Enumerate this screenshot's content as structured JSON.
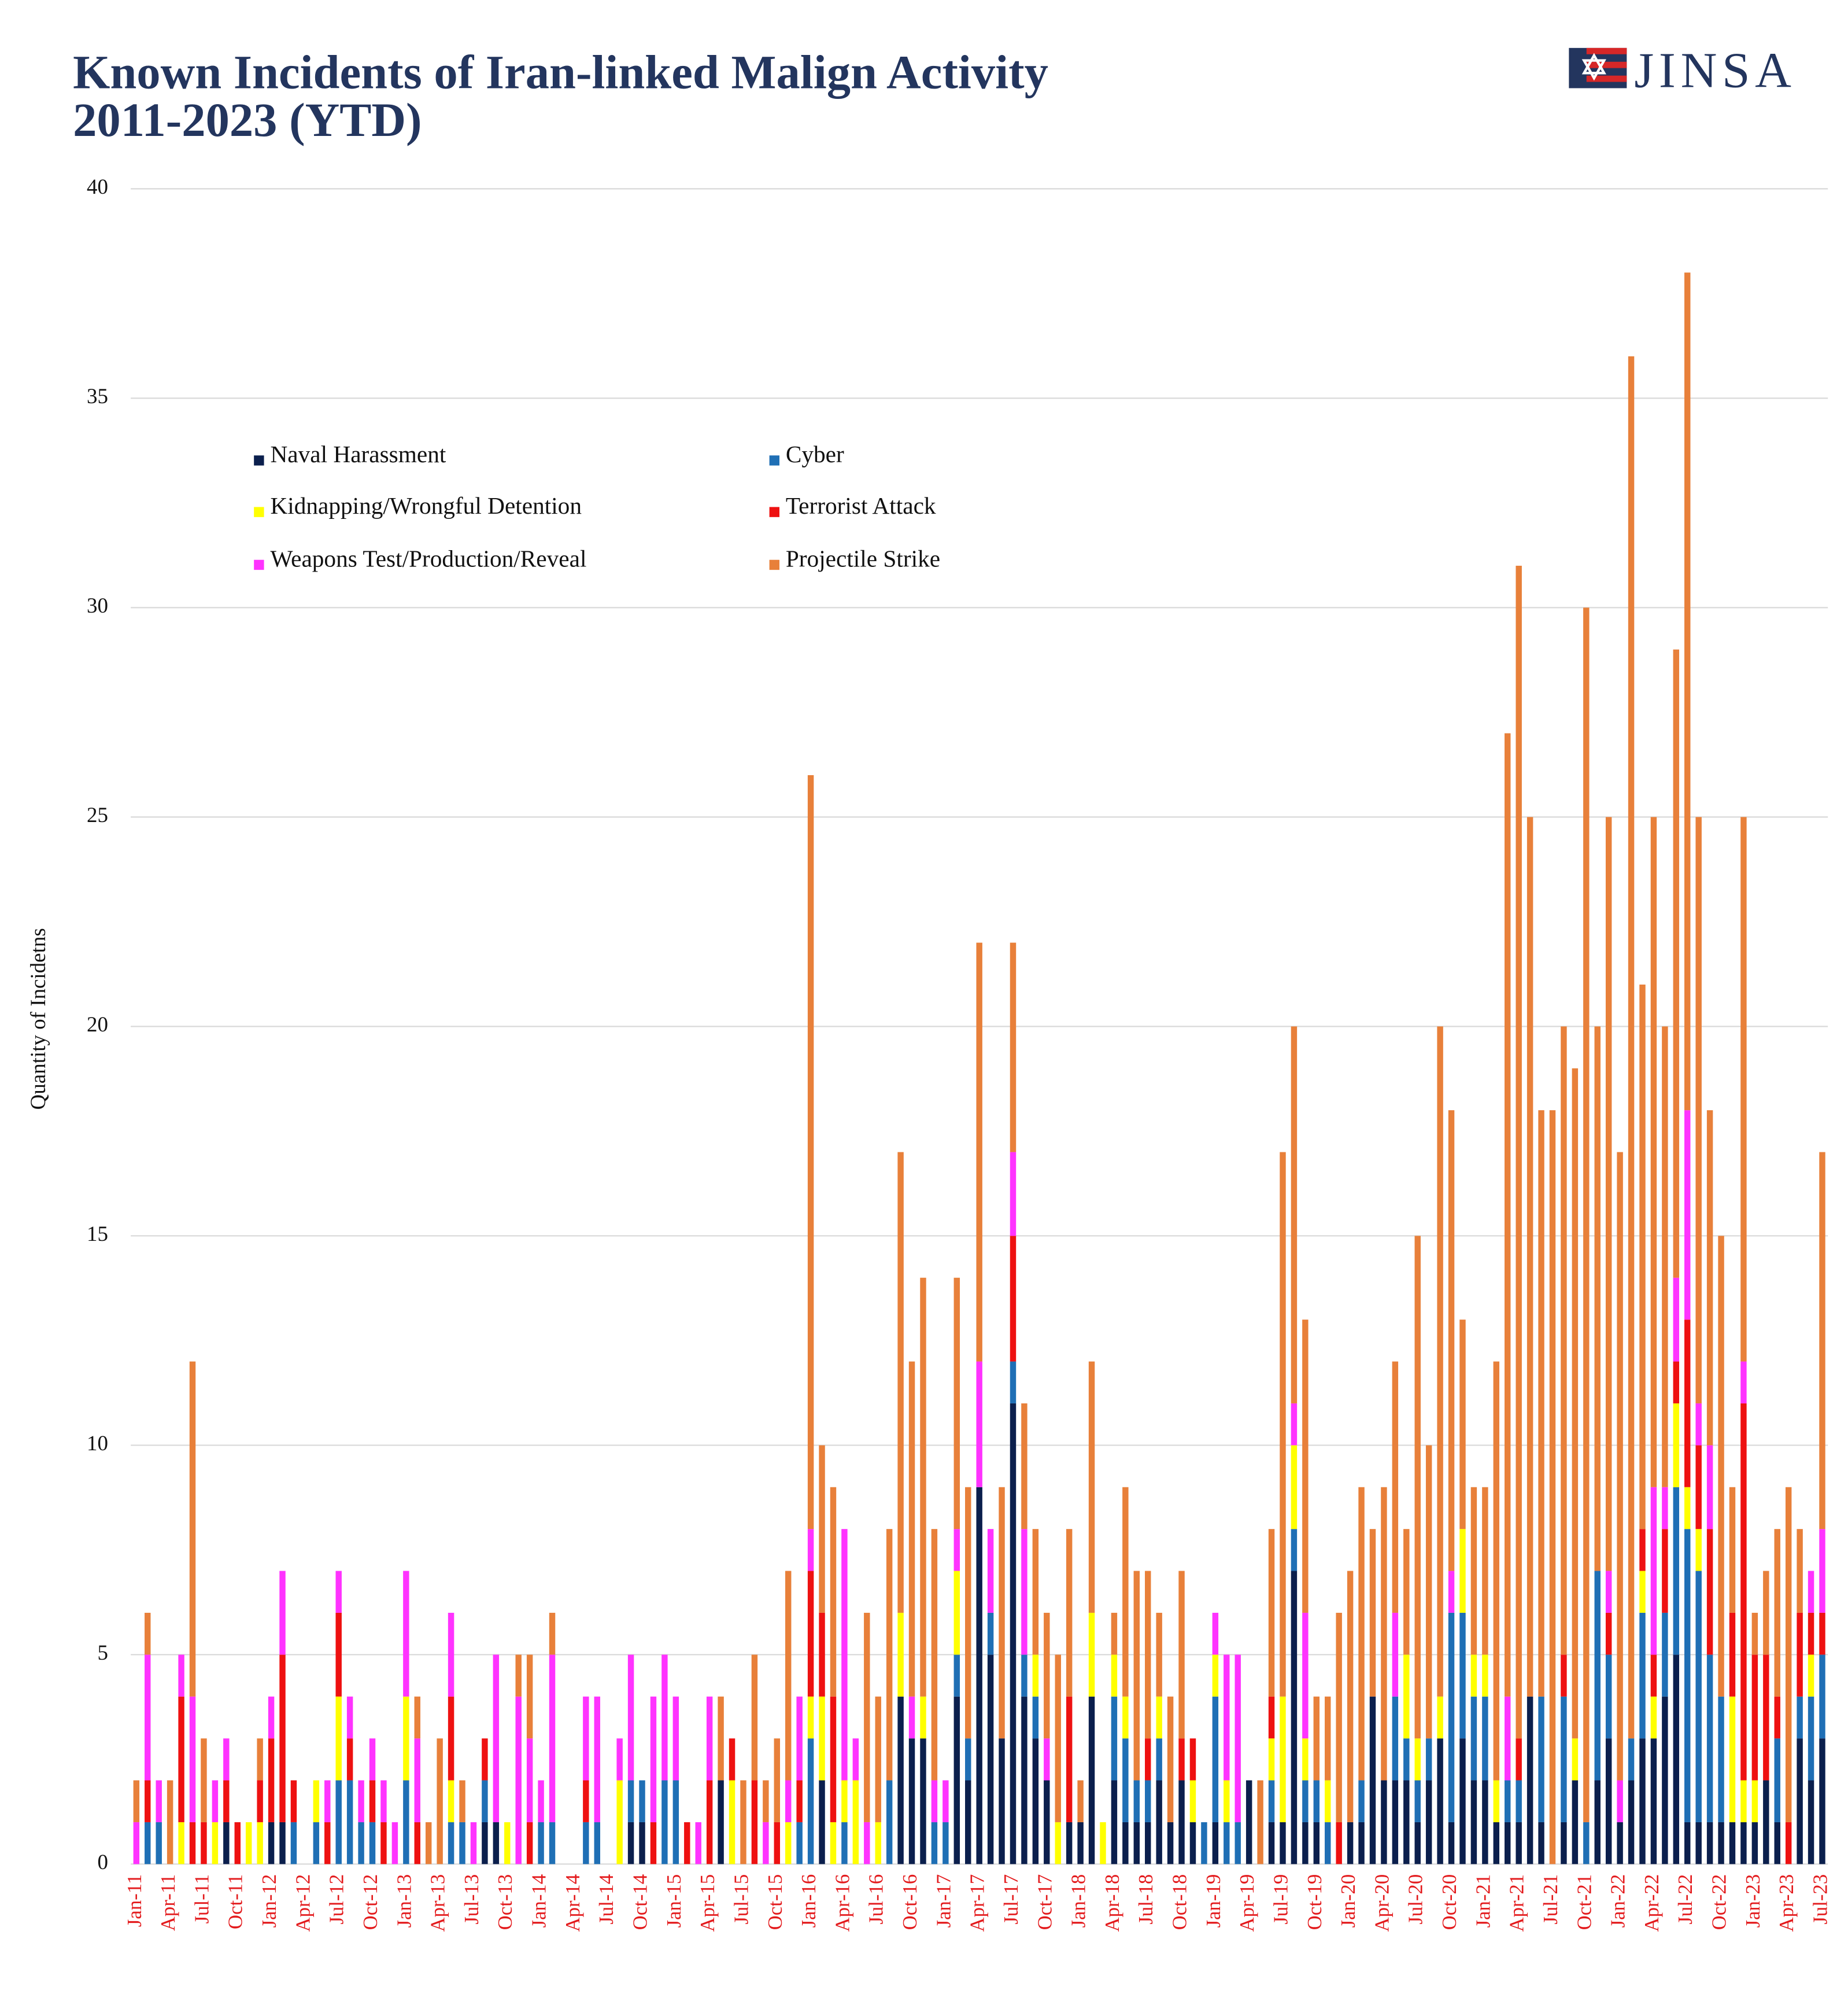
{
  "chart_data": {
    "type": "stacked_bar",
    "title": [
      "Known Incidents of Iran-linked Malign Activity",
      "2011-2023 (YTD)"
    ],
    "logo": "JINSA",
    "ylabel": "Quantity of Incidetns",
    "ylim": [
      0,
      40
    ],
    "yticks": [
      0,
      5,
      10,
      15,
      20,
      25,
      30,
      35,
      40
    ],
    "grid": true,
    "legend": "top-left",
    "categories": [
      "Jan-11",
      null,
      null,
      "Apr-11",
      null,
      null,
      "Jul-11",
      null,
      null,
      "Oct-11",
      null,
      null,
      "Jan-12",
      null,
      null,
      "Apr-12",
      null,
      null,
      "Jul-12",
      null,
      null,
      "Oct-12",
      null,
      null,
      "Jan-13",
      null,
      null,
      "Apr-13",
      null,
      null,
      "Jul-13",
      null,
      null,
      "Oct-13",
      null,
      null,
      "Jan-14",
      null,
      null,
      "Apr-14",
      null,
      null,
      "Jul-14",
      null,
      null,
      "Oct-14",
      null,
      null,
      "Jan-15",
      null,
      null,
      "Apr-15",
      null,
      null,
      "Jul-15",
      null,
      null,
      "Oct-15",
      null,
      null,
      "Jan-16",
      null,
      null,
      "Apr-16",
      null,
      null,
      "Jul-16",
      null,
      null,
      "Oct-16",
      null,
      null,
      "Jan-17",
      null,
      null,
      "Apr-17",
      null,
      null,
      "Jul-17",
      null,
      null,
      "Oct-17",
      null,
      null,
      "Jan-18",
      null,
      null,
      "Apr-18",
      null,
      null,
      "Jul-18",
      null,
      null,
      "Oct-18",
      null,
      null,
      "Jan-19",
      null,
      null,
      "Apr-19",
      null,
      null,
      "Jul-19",
      null,
      null,
      "Oct-19",
      null,
      null,
      "Jan-20",
      null,
      null,
      "Apr-20",
      null,
      null,
      "Jul-20",
      null,
      null,
      "Oct-20",
      null,
      null,
      "Jan-21",
      null,
      null,
      "Apr-21",
      null,
      null,
      "Jul-21",
      null,
      null,
      "Oct-21",
      null,
      null,
      "Jan-22",
      null,
      null,
      "Apr-22",
      null,
      null,
      "Jul-22",
      null,
      null,
      "Oct-22",
      null,
      null,
      "Jan-23",
      null,
      null,
      "Apr-23",
      null,
      null,
      "Jul-23"
    ],
    "series": [
      {
        "name": "Naval Harassment",
        "color": "#0b1f4d",
        "values": [
          0,
          0,
          0,
          0,
          0,
          0,
          0,
          0,
          1,
          0,
          0,
          0,
          1,
          1,
          0,
          0,
          0,
          0,
          0,
          0,
          0,
          0,
          0,
          0,
          0,
          0,
          0,
          0,
          0,
          0,
          0,
          1,
          1,
          0,
          0,
          0,
          0,
          0,
          0,
          0,
          0,
          0,
          0,
          0,
          1,
          1,
          0,
          0,
          0,
          0,
          0,
          0,
          2,
          0,
          0,
          0,
          0,
          0,
          0,
          0,
          0,
          2,
          0,
          0,
          0,
          0,
          0,
          0,
          4,
          3,
          3,
          0,
          0,
          4,
          2,
          9,
          5,
          3,
          11,
          4,
          3,
          2,
          0,
          1,
          1,
          4,
          0,
          2,
          1,
          1,
          1,
          2,
          1,
          2,
          1,
          0,
          1,
          0,
          0,
          2,
          0,
          1,
          1,
          7,
          1,
          1,
          0,
          0,
          1,
          1,
          4,
          2,
          2,
          2,
          1,
          2,
          3,
          1,
          3,
          2,
          2,
          1,
          1,
          1,
          4,
          1,
          0,
          1,
          2,
          0,
          2,
          3,
          1,
          2,
          3,
          3,
          4,
          5,
          1,
          1,
          1,
          1,
          1,
          1,
          1,
          2,
          1,
          0,
          3,
          2,
          3
        ]
      },
      {
        "name": "Cyber",
        "color": "#1f6fb5",
        "values": [
          0,
          1,
          1,
          0,
          0,
          0,
          0,
          0,
          0,
          0,
          0,
          0,
          0,
          0,
          1,
          0,
          1,
          0,
          2,
          2,
          1,
          1,
          0,
          0,
          2,
          0,
          0,
          0,
          1,
          1,
          0,
          1,
          0,
          0,
          0,
          0,
          1,
          1,
          0,
          0,
          1,
          1,
          0,
          0,
          1,
          1,
          0,
          2,
          2,
          0,
          0,
          0,
          0,
          0,
          0,
          0,
          0,
          0,
          0,
          1,
          3,
          0,
          0,
          1,
          0,
          0,
          0,
          2,
          0,
          0,
          0,
          1,
          1,
          1,
          1,
          0,
          1,
          0,
          1,
          1,
          1,
          0,
          0,
          0,
          0,
          0,
          0,
          2,
          2,
          1,
          1,
          1,
          0,
          0,
          0,
          1,
          3,
          1,
          1,
          0,
          0,
          1,
          0,
          1,
          1,
          1,
          1,
          0,
          0,
          1,
          0,
          0,
          2,
          1,
          1,
          1,
          0,
          5,
          3,
          2,
          2,
          0,
          1,
          1,
          0,
          3,
          0,
          3,
          0,
          1,
          5,
          2,
          0,
          1,
          3,
          0,
          2,
          4,
          7,
          6,
          4,
          3,
          0,
          0,
          0,
          0,
          2,
          0,
          1,
          2,
          2
        ]
      },
      {
        "name": "Kidnapping/Wrongful Detention",
        "color": "#ffff00",
        "values": [
          0,
          0,
          0,
          0,
          1,
          0,
          0,
          1,
          0,
          0,
          1,
          1,
          0,
          0,
          0,
          0,
          1,
          0,
          2,
          0,
          0,
          0,
          0,
          0,
          2,
          0,
          0,
          0,
          1,
          0,
          0,
          0,
          0,
          1,
          0,
          0,
          0,
          0,
          0,
          0,
          0,
          0,
          0,
          2,
          0,
          0,
          0,
          0,
          0,
          0,
          0,
          0,
          0,
          2,
          0,
          0,
          0,
          0,
          1,
          0,
          1,
          2,
          1,
          1,
          2,
          0,
          1,
          0,
          2,
          0,
          1,
          0,
          0,
          2,
          0,
          0,
          0,
          0,
          0,
          0,
          1,
          0,
          1,
          0,
          0,
          2,
          1,
          1,
          1,
          0,
          0,
          1,
          0,
          0,
          1,
          0,
          1,
          1,
          0,
          0,
          0,
          1,
          3,
          2,
          1,
          0,
          1,
          0,
          0,
          0,
          0,
          0,
          0,
          2,
          1,
          0,
          1,
          0,
          2,
          1,
          1,
          1,
          0,
          0,
          0,
          0,
          0,
          0,
          1,
          0,
          0,
          0,
          0,
          0,
          1,
          1,
          0,
          2,
          1,
          1,
          0,
          0,
          3,
          1,
          1,
          0,
          0,
          0,
          0,
          1,
          0
        ]
      },
      {
        "name": "Terrorist Attack",
        "color": "#ee1111",
        "values": [
          0,
          1,
          0,
          0,
          3,
          1,
          1,
          0,
          1,
          1,
          0,
          1,
          2,
          4,
          1,
          0,
          0,
          1,
          2,
          1,
          0,
          1,
          1,
          0,
          0,
          1,
          0,
          0,
          2,
          0,
          0,
          1,
          0,
          0,
          0,
          1,
          0,
          0,
          0,
          0,
          1,
          0,
          0,
          0,
          0,
          0,
          1,
          0,
          0,
          1,
          0,
          2,
          0,
          1,
          0,
          2,
          0,
          1,
          0,
          1,
          3,
          2,
          3,
          0,
          0,
          0,
          0,
          0,
          0,
          0,
          0,
          0,
          0,
          0,
          0,
          0,
          0,
          0,
          3,
          0,
          0,
          0,
          0,
          3,
          0,
          0,
          0,
          0,
          0,
          0,
          1,
          0,
          0,
          1,
          1,
          0,
          0,
          0,
          0,
          0,
          0,
          1,
          0,
          0,
          0,
          0,
          0,
          1,
          0,
          0,
          0,
          0,
          0,
          0,
          0,
          0,
          0,
          0,
          0,
          0,
          0,
          0,
          0,
          1,
          0,
          0,
          0,
          1,
          0,
          0,
          0,
          1,
          0,
          0,
          1,
          1,
          2,
          1,
          4,
          2,
          3,
          0,
          2,
          9,
          3,
          3,
          1,
          1,
          2,
          1,
          1
        ]
      },
      {
        "name": "Weapons Test/Production/Reveal",
        "color": "#ff33ff",
        "values": [
          1,
          3,
          1,
          0,
          1,
          3,
          0,
          1,
          1,
          0,
          0,
          0,
          1,
          2,
          0,
          0,
          0,
          1,
          1,
          1,
          1,
          1,
          1,
          1,
          3,
          2,
          0,
          0,
          2,
          0,
          1,
          0,
          4,
          0,
          4,
          2,
          1,
          4,
          0,
          0,
          2,
          3,
          0,
          1,
          3,
          0,
          3,
          3,
          2,
          0,
          1,
          2,
          0,
          0,
          0,
          0,
          1,
          0,
          1,
          2,
          1,
          0,
          0,
          6,
          1,
          1,
          0,
          0,
          0,
          1,
          0,
          1,
          1,
          1,
          0,
          3,
          2,
          0,
          2,
          3,
          0,
          1,
          0,
          0,
          0,
          0,
          0,
          0,
          0,
          0,
          0,
          0,
          0,
          0,
          0,
          0,
          1,
          3,
          4,
          0,
          0,
          0,
          0,
          1,
          3,
          0,
          0,
          0,
          0,
          0,
          0,
          0,
          2,
          0,
          0,
          0,
          0,
          1,
          0,
          0,
          0,
          0,
          2,
          0,
          0,
          0,
          0,
          0,
          0,
          0,
          0,
          1,
          1,
          0,
          0,
          4,
          1,
          2,
          5,
          1,
          2,
          0,
          0,
          1,
          0,
          0,
          0,
          0,
          0,
          1,
          2
        ]
      },
      {
        "name": "Projectile Strike",
        "color": "#e8803a",
        "values": [
          1,
          1,
          0,
          2,
          0,
          8,
          2,
          0,
          0,
          0,
          0,
          1,
          0,
          0,
          0,
          0,
          0,
          0,
          0,
          0,
          0,
          0,
          0,
          0,
          0,
          1,
          1,
          3,
          0,
          1,
          0,
          0,
          0,
          0,
          1,
          2,
          0,
          1,
          0,
          0,
          0,
          0,
          0,
          0,
          0,
          0,
          0,
          0,
          0,
          0,
          0,
          0,
          2,
          0,
          2,
          3,
          1,
          2,
          5,
          0,
          18,
          4,
          5,
          0,
          0,
          5,
          3,
          6,
          11,
          8,
          10,
          6,
          0,
          6,
          6,
          10,
          0,
          6,
          5,
          3,
          3,
          3,
          4,
          4,
          1,
          6,
          0,
          1,
          5,
          5,
          4,
          2,
          3,
          4,
          0,
          0,
          0,
          0,
          0,
          0,
          2,
          4,
          13,
          9,
          7,
          2,
          2,
          5,
          6,
          7,
          4,
          7,
          6,
          3,
          12,
          7,
          16,
          11,
          5,
          4,
          4,
          10,
          23,
          28,
          21,
          14,
          18,
          15,
          16,
          29,
          13,
          18,
          15,
          33,
          13,
          16,
          11,
          15,
          20,
          14,
          8,
          11,
          3,
          13,
          1,
          2,
          4,
          8,
          2,
          0,
          9
        ]
      }
    ]
  }
}
